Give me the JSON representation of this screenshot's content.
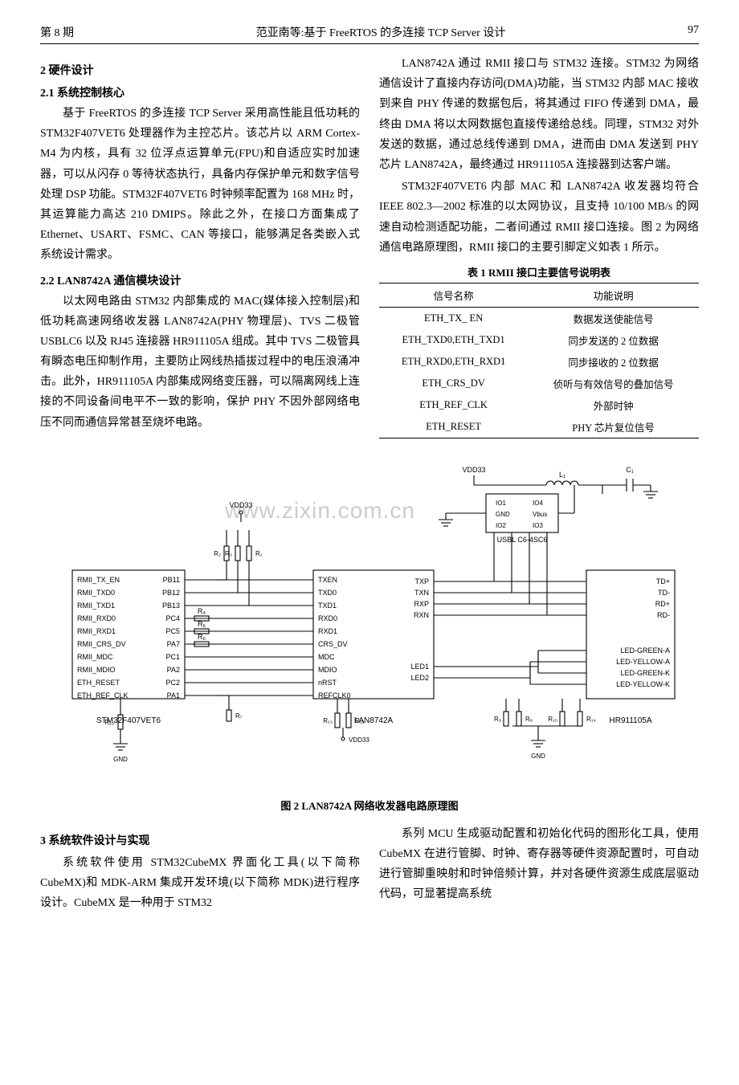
{
  "header": {
    "issue": "第 8 期",
    "title": "范亚南等:基于 FreeRTOS 的多连接 TCP Server 设计",
    "page": "97"
  },
  "sections": {
    "s2": "2  硬件设计",
    "s2_1": "2.1  系统控制核心",
    "p2_1": "基于 FreeRTOS 的多连接 TCP Server 采用高性能且低功耗的 STM32F407VET6 处理器作为主控芯片。该芯片以 ARM Cortex-M4 为内核，具有 32 位浮点运算单元(FPU)和自适应实时加速器，可以从闪存 0 等待状态执行，具备内存保护单元和数字信号处理 DSP 功能。STM32F407VET6 时钟频率配置为 168 MHz 时，其运算能力高达 210 DMIPS。除此之外，在接口方面集成了 Ethernet、USART、FSMC、CAN 等接口，能够满足各类嵌入式系统设计需求。",
    "s2_2": "2.2  LAN8742A 通信模块设计",
    "p2_2": "以太网电路由 STM32 内部集成的 MAC(媒体接入控制层)和低功耗高速网络收发器 LAN8742A(PHY 物理层)、TVS 二极管 USBLC6 以及 RJ45 连接器 HR911105A 组成。其中 TVS 二极管具有瞬态电压抑制作用，主要防止网线热插拔过程中的电压浪涌冲击。此外，HR911105A 内部集成网络变压器，可以隔离网线上连接的不同设备间电平不一致的影响，保护 PHY 不因外部网络电压不同而通信异常甚至烧坏电路。",
    "p2_3": "LAN8742A 通过 RMII 接口与 STM32 连接。STM32 为网络通信设计了直接内存访问(DMA)功能，当 STM32 内部 MAC 接收到来自 PHY 传递的数据包后，将其通过 FIFO 传递到 DMA，最终由 DMA 将以太网数据包直接传递给总线。同理，STM32 对外发送的数据，通过总线传递到 DMA，进而由 DMA 发送到 PHY 芯片 LAN8742A，最终通过 HR911105A 连接器到达客户端。",
    "p2_4": "STM32F407VET6 内部 MAC 和 LAN8742A 收发器均符合 IEEE 802.3—2002 标准的以太网协议，且支持 10/100 MB/s 的网速自动检测适配功能，二者间通过 RMII 接口连接。图 2 为网络通信电路原理图，RMII 接口的主要引脚定义如表 1 所示。",
    "s3": "3  系统软件设计与实现",
    "p3_1": "系统软件使用 STM32CubeMX 界面化工具(以下简称 CubeMX)和 MDK-ARM 集成开发环境(以下简称 MDK)进行程序设计。CubeMX 是一种用于 STM32",
    "p3_2": "系列 MCU 生成驱动配置和初始化代码的图形化工具，使用 CubeMX 在进行管脚、时钟、寄存器等硬件资源配置时，可自动进行管脚重映射和时钟倍频计算，并对各硬件资源生成底层驱动代码，可显著提高系统"
  },
  "table": {
    "caption": "表 1  RMII 接口主要信号说明表",
    "columns": [
      "信号名称",
      "功能说明"
    ],
    "rows": [
      [
        "ETH_TX_ EN",
        "数据发送使能信号"
      ],
      [
        "ETH_TXD0,ETH_TXD1",
        "同步发送的 2 位数据"
      ],
      [
        "ETH_RXD0,ETH_RXD1",
        "同步接收的 2 位数据"
      ],
      [
        "ETH_CRS_DV",
        "侦听与有效信号的叠加信号"
      ],
      [
        "ETH_REF_CLK",
        "外部时钟"
      ],
      [
        "ETH_RESET",
        "PHY 芯片复位信号"
      ]
    ]
  },
  "figure2": {
    "caption": "图 2  LAN8742A 网络收发器电路原理图",
    "stm32": {
      "label": "STM32F407VET6",
      "pins": [
        "RMII_TX_EN",
        "RMII_TXD0",
        "RMII_TXD1",
        "RMII_RXD0",
        "RMII_RXD1",
        "RMII_CRS_DV",
        "RMII_MDC",
        "RMII_MDIO",
        "ETH_RESET",
        "ETH_REF_CLK"
      ],
      "pbpins": [
        "PB11",
        "PB12",
        "PB13",
        "PC4",
        "PC5",
        "PA7",
        "PC1",
        "PA2",
        "PC2",
        "PA1"
      ]
    },
    "lan": {
      "label": "LAN8742A",
      "left": [
        "TXEN",
        "TXD0",
        "TXD1",
        "RXD0",
        "RXD1",
        "CRS_DV",
        "MDC",
        "MDIO",
        "nRST",
        "REFCLK0"
      ],
      "right": [
        "TXP",
        "TXN",
        "RXP",
        "RXN",
        "LED1",
        "LED2"
      ]
    },
    "hr": {
      "label": "HR911105A",
      "pins": [
        "TD+",
        "TD-",
        "RD+",
        "RD-",
        "LED-GREEN-A",
        "LED-YELLOW-A",
        "LED-GREEN-K",
        "LED-YELLOW-K"
      ]
    },
    "usb": {
      "label": "USBL C6-4SC6",
      "pins": [
        "IO1",
        "IO4",
        "GND",
        "Vbus",
        "IO2",
        "IO3"
      ]
    },
    "nets": {
      "vdd": "VDD33",
      "gnd": "GND",
      "L1": "L₁",
      "C1": "C₁",
      "Rlabels": [
        "R₁",
        "R₂",
        "R₃",
        "R₄",
        "R₅",
        "R₆",
        "R₇",
        "R₈",
        "R₉",
        "R₁₀",
        "R₁₁",
        "R₁₂",
        "R₁₃",
        "R₁₄"
      ]
    },
    "colors": {
      "line": "#000000",
      "fill": "#ffffff",
      "text": "#000000"
    },
    "stroke_width": 1.1,
    "font_size": 10
  },
  "watermark": "www.zixin.com.cn"
}
